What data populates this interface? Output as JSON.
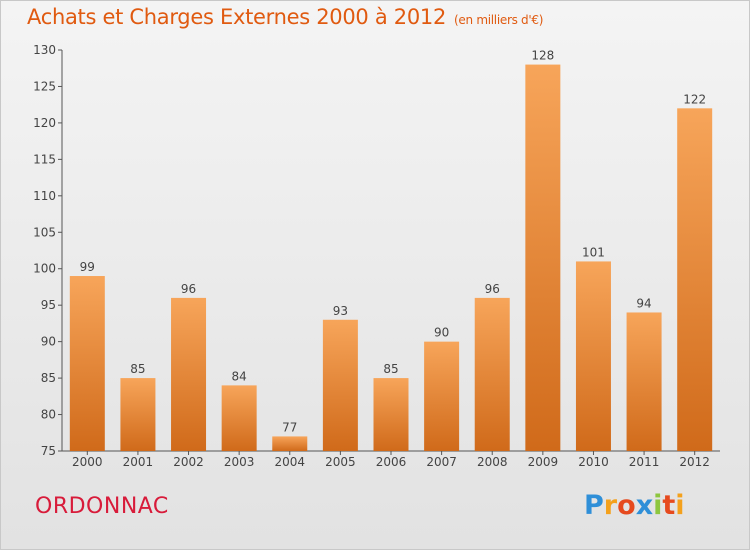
{
  "header": {
    "title": "Achats et Charges Externes 2000 à 2012",
    "unit": "(en milliers d'€)"
  },
  "footer": {
    "location": "ORDONNAC",
    "brand": [
      "P",
      "r",
      "o",
      "x",
      "i",
      "t",
      "i"
    ]
  },
  "colors": {
    "title": "#e05a10",
    "location": "#d81b3a",
    "bar_top": "#f7a55a",
    "bar_bottom": "#d06a1a"
  },
  "chart_data": {
    "type": "bar",
    "categories": [
      "2000",
      "2001",
      "2002",
      "2003",
      "2004",
      "2005",
      "2006",
      "2007",
      "2008",
      "2009",
      "2010",
      "2011",
      "2012"
    ],
    "values": [
      99,
      85,
      96,
      84,
      77,
      93,
      85,
      90,
      96,
      128,
      101,
      94,
      122
    ],
    "title": "Achats et Charges Externes 2000 à 2012",
    "ylim": [
      75,
      130
    ],
    "yticks": [
      75,
      80,
      85,
      90,
      95,
      100,
      105,
      110,
      115,
      120,
      125,
      130
    ],
    "grid": false
  }
}
